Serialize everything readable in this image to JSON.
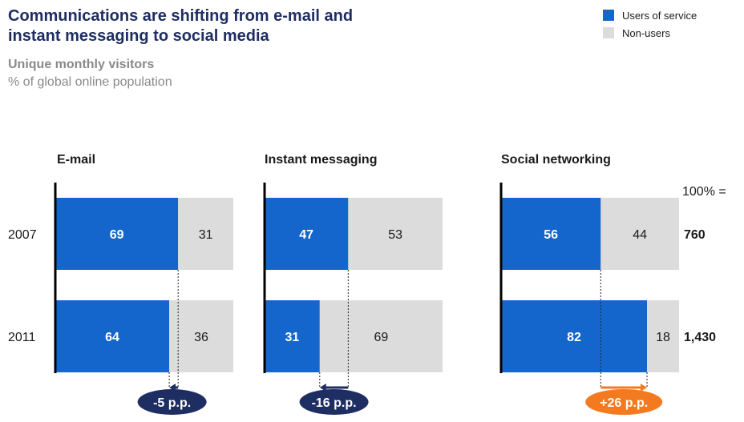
{
  "header": {
    "title_line1": "Communications are shifting from e-mail and",
    "title_line2": "instant messaging to social media",
    "subtitle": "Unique monthly visitors",
    "subtitle2": "% of global online population"
  },
  "legend": [
    {
      "label": "Users of service",
      "color": "#1466cc"
    },
    {
      "label": "Non-users",
      "color": "#dcdcdc"
    }
  ],
  "colors": {
    "users": "#1466cc",
    "nonusers": "#dcdcdc",
    "navy": "#1e2e62",
    "orange": "#f47a20"
  },
  "chart_data": {
    "type": "bar",
    "categories": [
      "2007",
      "2011"
    ],
    "total_label": "100% =",
    "totals": [
      "760",
      "1,430"
    ],
    "panels": [
      {
        "name": "E-mail",
        "users": [
          69,
          64
        ],
        "nonusers": [
          31,
          36
        ],
        "change": "-5 p.p."
      },
      {
        "name": "Instant messaging",
        "users": [
          47,
          31
        ],
        "nonusers": [
          53,
          69
        ],
        "change": "-16 p.p."
      },
      {
        "name": "Social networking",
        "users": [
          56,
          82
        ],
        "nonusers": [
          44,
          18
        ],
        "change": "+26 p.p."
      }
    ]
  }
}
